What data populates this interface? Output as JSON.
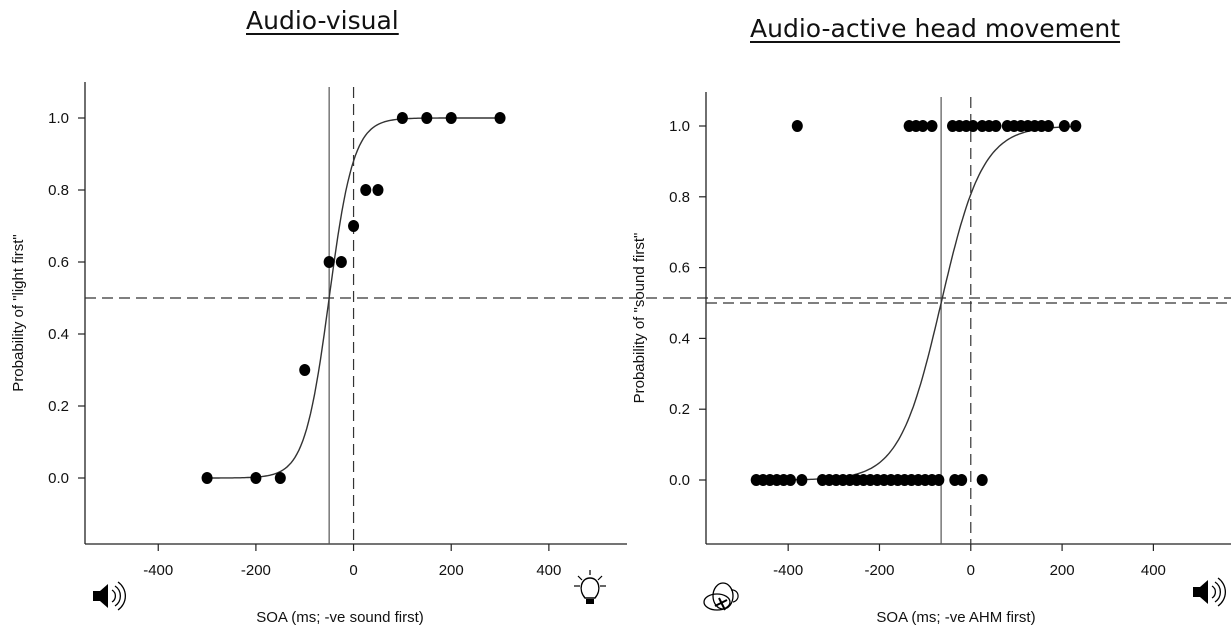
{
  "chart_data": [
    {
      "type": "scatter",
      "title": "Audio-visual",
      "xlabel": "SOA (ms; -ve sound first)",
      "ylabel": "Probability of \"light first\"",
      "xlim": [
        -550,
        560
      ],
      "ylim": [
        -0.18,
        1.1
      ],
      "xticks": [
        -400,
        -200,
        0,
        200,
        400
      ],
      "xtick_labels": [
        "-400",
        "-200",
        "0",
        "200",
        "400"
      ],
      "yticks": [
        0.0,
        0.2,
        0.4,
        0.6,
        0.8,
        1.0
      ],
      "ytick_labels": [
        "0.0",
        "0.2",
        "0.4",
        "0.6",
        "0.8",
        "1.0"
      ],
      "grid": false,
      "points": {
        "x": [
          -300,
          -200,
          -150,
          -100,
          -50,
          -25,
          0,
          25,
          50,
          100,
          150,
          200,
          300
        ],
        "y": [
          0.0,
          0.0,
          0.0,
          0.3,
          0.6,
          0.6,
          0.7,
          0.8,
          0.8,
          1.0,
          1.0,
          1.0,
          1.0
        ]
      },
      "fit_curve": {
        "type": "logistic",
        "pse": -50,
        "slope": 0.04
      },
      "reference_lines": {
        "pse_vertical": -50,
        "zero_vertical_dashed": 0,
        "horizontal_dashed": 0.5
      },
      "corner_icons": {
        "left": "speaker-icon",
        "right": "lightbulb-icon"
      }
    },
    {
      "type": "scatter",
      "title": "Audio-active head movement",
      "xlabel": "SOA (ms; -ve AHM first)",
      "ylabel": "Probability of \"sound first\"",
      "xlim": [
        -580,
        570
      ],
      "ylim": [
        -0.18,
        1.1
      ],
      "xticks": [
        -400,
        -200,
        0,
        200,
        400
      ],
      "xtick_labels": [
        "-400",
        "-200",
        "0",
        "200",
        "400"
      ],
      "yticks": [
        0.0,
        0.2,
        0.4,
        0.6,
        0.8,
        1.0
      ],
      "ytick_labels": [
        "0.0",
        "0.2",
        "0.4",
        "0.6",
        "0.8",
        "1.0"
      ],
      "grid": false,
      "points": {
        "x": [
          -380,
          -135,
          -120,
          -105,
          -85,
          -40,
          -25,
          -10,
          5,
          25,
          40,
          55,
          80,
          95,
          110,
          125,
          140,
          155,
          170,
          205,
          230,
          -470,
          -455,
          -440,
          -425,
          -410,
          -395,
          -370,
          -325,
          -310,
          -295,
          -280,
          -265,
          -250,
          -235,
          -220,
          -205,
          -190,
          -175,
          -160,
          -145,
          -130,
          -115,
          -100,
          -85,
          -70,
          -35,
          -20,
          25
        ],
        "y": [
          1,
          1,
          1,
          1,
          1,
          1,
          1,
          1,
          1,
          1,
          1,
          1,
          1,
          1,
          1,
          1,
          1,
          1,
          1,
          1,
          1,
          0,
          0,
          0,
          0,
          0,
          0,
          0,
          0,
          0,
          0,
          0,
          0,
          0,
          0,
          0,
          0,
          0,
          0,
          0,
          0,
          0,
          0,
          0,
          0,
          0,
          0,
          0,
          0
        ]
      },
      "fit_curve": {
        "type": "logistic",
        "pse": -65,
        "slope": 0.022
      },
      "reference_lines": {
        "pse_vertical": -65,
        "zero_vertical_dashed": 0,
        "horizontal_dashed": 0.5
      },
      "corner_icons": {
        "left": "head-movement-icon",
        "right": "speaker-icon"
      }
    }
  ]
}
